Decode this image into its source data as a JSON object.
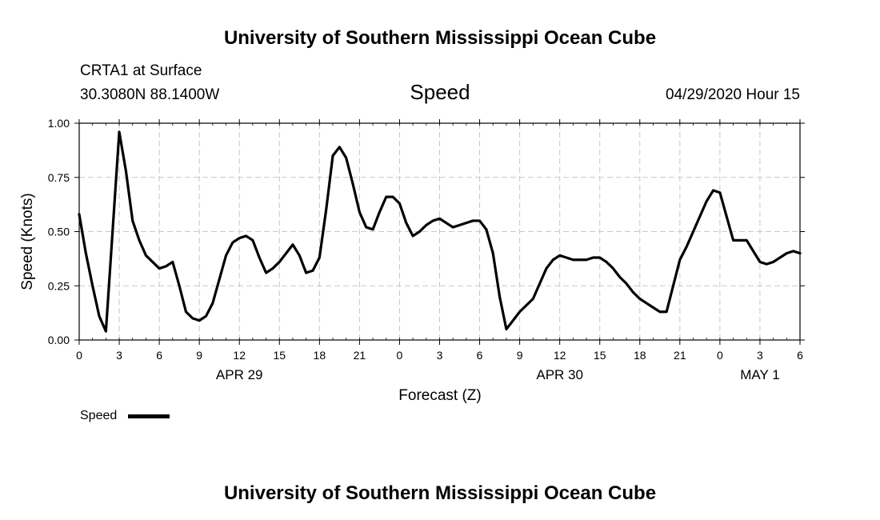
{
  "header": {
    "title": "University of Southern Mississippi Ocean Cube",
    "station": "CRTA1 at Surface",
    "coords": "30.3080N 88.1400W",
    "variable": "Speed",
    "init_time": "04/29/2020 Hour 15"
  },
  "footer": {
    "title": "University of Southern Mississippi Ocean Cube"
  },
  "legend": {
    "label": "Speed",
    "position": "bottom-left"
  },
  "chart_data": {
    "type": "line",
    "title": "Speed",
    "xlabel": "Forecast (Z)",
    "ylabel": "Speed (Knots)",
    "xunit": "hours since APR 29 00Z",
    "xlim": [
      0,
      54
    ],
    "ylim": [
      0,
      1
    ],
    "grid": true,
    "yticks": [
      0,
      0.25,
      0.5,
      0.75,
      1.0
    ],
    "ytick_labels": [
      "0.00",
      "0.25",
      "0.50",
      "0.75",
      "1.00"
    ],
    "xticks": [
      0,
      3,
      6,
      9,
      12,
      15,
      18,
      21,
      24,
      27,
      30,
      33,
      36,
      39,
      42,
      45,
      48,
      51,
      54
    ],
    "xtick_labels": [
      "0",
      "3",
      "6",
      "9",
      "12",
      "15",
      "18",
      "21",
      "0",
      "3",
      "6",
      "9",
      "12",
      "15",
      "18",
      "21",
      "0",
      "3",
      "6"
    ],
    "date_labels": [
      {
        "x": 12,
        "label": "APR 29"
      },
      {
        "x": 36,
        "label": "APR 30"
      },
      {
        "x": 51,
        "label": "MAY 1"
      }
    ],
    "series": [
      {
        "name": "Speed",
        "color": "#000000",
        "x": [
          0,
          0.5,
          1,
          1.5,
          2,
          2.5,
          3,
          3.5,
          4,
          4.5,
          5,
          5.5,
          6,
          6.5,
          7,
          7.5,
          8,
          8.5,
          9,
          9.5,
          10,
          10.5,
          11,
          11.5,
          12,
          12.5,
          13,
          13.5,
          14,
          14.5,
          15,
          15.5,
          16,
          16.5,
          17,
          17.5,
          18,
          18.5,
          19,
          19.5,
          20,
          20.5,
          21,
          21.5,
          22,
          22.5,
          23,
          23.5,
          24,
          24.5,
          25,
          25.5,
          26,
          26.5,
          27,
          27.5,
          28,
          28.5,
          29,
          29.5,
          30,
          30.5,
          31,
          31.5,
          32,
          32.5,
          33,
          33.5,
          34,
          34.5,
          35,
          35.5,
          36,
          36.5,
          37,
          37.5,
          38,
          38.5,
          39,
          39.5,
          40,
          40.5,
          41,
          41.5,
          42,
          42.5,
          43,
          43.5,
          44,
          44.5,
          45,
          45.5,
          46,
          46.5,
          47,
          47.5,
          48,
          48.5,
          49,
          49.5,
          50,
          50.5,
          51,
          51.5,
          52,
          52.5,
          53,
          53.5,
          54
        ],
        "values": [
          0.58,
          0.4,
          0.25,
          0.11,
          0.04,
          0.5,
          0.96,
          0.78,
          0.55,
          0.46,
          0.39,
          0.36,
          0.33,
          0.34,
          0.36,
          0.25,
          0.13,
          0.1,
          0.09,
          0.11,
          0.17,
          0.28,
          0.39,
          0.45,
          0.47,
          0.48,
          0.46,
          0.38,
          0.31,
          0.33,
          0.36,
          0.4,
          0.44,
          0.39,
          0.31,
          0.32,
          0.38,
          0.6,
          0.85,
          0.89,
          0.84,
          0.72,
          0.59,
          0.52,
          0.51,
          0.59,
          0.66,
          0.66,
          0.63,
          0.54,
          0.48,
          0.5,
          0.53,
          0.55,
          0.56,
          0.54,
          0.52,
          0.53,
          0.54,
          0.55,
          0.55,
          0.51,
          0.4,
          0.2,
          0.05,
          0.09,
          0.13,
          0.16,
          0.19,
          0.26,
          0.33,
          0.37,
          0.39,
          0.38,
          0.37,
          0.37,
          0.37,
          0.38,
          0.38,
          0.36,
          0.33,
          0.29,
          0.26,
          0.22,
          0.19,
          0.17,
          0.15,
          0.13,
          0.13,
          0.25,
          0.37,
          0.43,
          0.5,
          0.57,
          0.64,
          0.69,
          0.68,
          0.57,
          0.46,
          0.46,
          0.46,
          0.41,
          0.36,
          0.35,
          0.36,
          0.38,
          0.4,
          0.41,
          0.4
        ]
      }
    ]
  }
}
